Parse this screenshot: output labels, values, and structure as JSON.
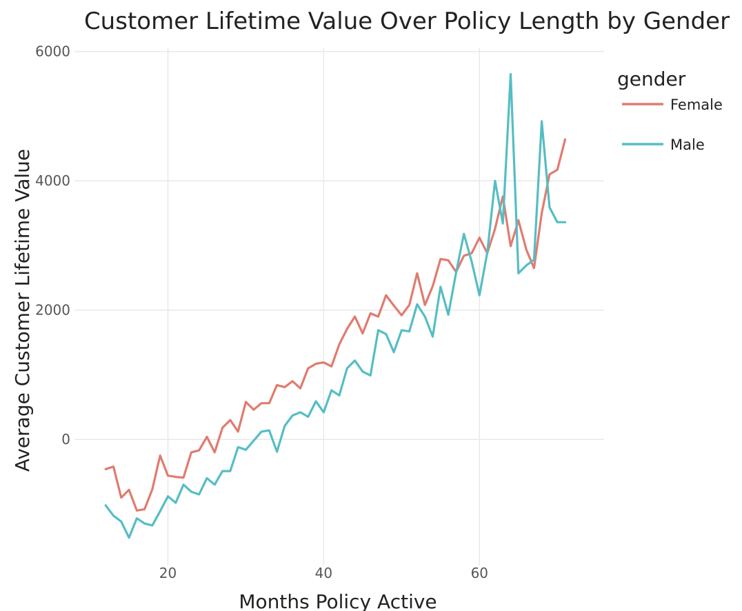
{
  "colors": {
    "female": "#E07B6F",
    "male": "#55BDC4",
    "grid": "#e8e8e8"
  },
  "chart_data": {
    "type": "line",
    "title": "Customer Lifetime Value Over Policy Length by Gender",
    "xlabel": "Months Policy Active",
    "ylabel": "Average Customer Lifetime Value",
    "xlim": [
      8,
      76
    ],
    "ylim": [
      -1950,
      6050
    ],
    "xticks": [
      20,
      40,
      60
    ],
    "yticks": [
      0,
      2000,
      4000,
      6000
    ],
    "grid": true,
    "legend": {
      "title": "gender",
      "position": "right"
    },
    "x": [
      12,
      13,
      14,
      15,
      16,
      17,
      18,
      19,
      20,
      21,
      22,
      23,
      24,
      25,
      26,
      27,
      28,
      29,
      30,
      31,
      32,
      33,
      34,
      35,
      36,
      37,
      38,
      39,
      40,
      41,
      42,
      43,
      44,
      45,
      46,
      47,
      48,
      49,
      50,
      51,
      52,
      53,
      54,
      55,
      56,
      57,
      58,
      59,
      60,
      61,
      62,
      63,
      64,
      65,
      66,
      67,
      68,
      69,
      70,
      71
    ],
    "series": [
      {
        "name": "Female",
        "color": "#E07B6F",
        "values": [
          -460,
          -420,
          -900,
          -780,
          -1100,
          -1080,
          -770,
          -250,
          -560,
          -580,
          -590,
          -200,
          -170,
          40,
          -200,
          180,
          300,
          120,
          580,
          460,
          560,
          560,
          840,
          810,
          900,
          790,
          1100,
          1170,
          1190,
          1130,
          1470,
          1710,
          1900,
          1640,
          1950,
          1900,
          2230,
          2070,
          1920,
          2080,
          2570,
          2080,
          2370,
          2790,
          2770,
          2590,
          2840,
          2880,
          3120,
          2880,
          3260,
          3760,
          2990,
          3390,
          2940,
          2650,
          3500,
          4100,
          4170,
          4640
        ]
      },
      {
        "name": "Male",
        "color": "#55BDC4",
        "values": [
          -1020,
          -1180,
          -1270,
          -1520,
          -1220,
          -1300,
          -1330,
          -1110,
          -880,
          -980,
          -700,
          -810,
          -850,
          -600,
          -700,
          -490,
          -490,
          -120,
          -160,
          -20,
          120,
          140,
          -190,
          210,
          370,
          420,
          350,
          590,
          420,
          760,
          680,
          1100,
          1220,
          1050,
          990,
          1690,
          1630,
          1350,
          1690,
          1670,
          2090,
          1900,
          1590,
          2360,
          1930,
          2580,
          3180,
          2750,
          2230,
          2890,
          4000,
          3340,
          5650,
          2570,
          2690,
          2780,
          4920,
          3590,
          3360,
          3360
        ]
      }
    ]
  }
}
